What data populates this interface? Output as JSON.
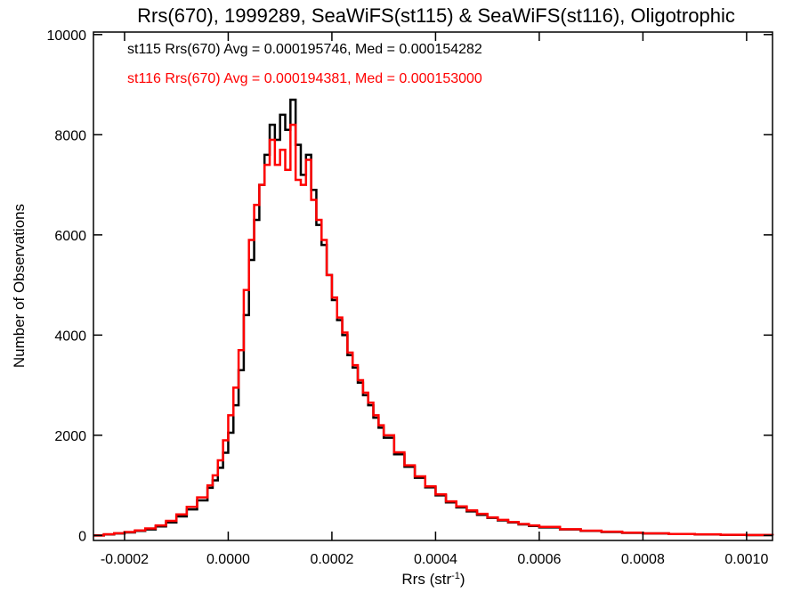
{
  "chart_data": {
    "type": "line",
    "title": "Rrs(670), 1999289, SeaWiFS(st115) & SeaWiFS(st116), Oligotrophic",
    "xlabel_main": "Rrs (str",
    "xlabel_sup": "-1",
    "xlabel_close": ")",
    "ylabel": "Number of Observations",
    "xlim": [
      -0.00026,
      0.00105
    ],
    "ylim": [
      -100,
      10050
    ],
    "xticks": [
      -0.0002,
      0.0,
      0.0002,
      0.0004,
      0.0006,
      0.0008,
      0.001
    ],
    "xtick_labels": [
      "-0.0002",
      "0.0000",
      "0.0002",
      "0.0004",
      "0.0006",
      "0.0008",
      "0.0010"
    ],
    "yticks": [
      0,
      2000,
      4000,
      6000,
      8000,
      10000
    ],
    "ytick_labels": [
      "0",
      "2000",
      "4000",
      "6000",
      "8000",
      "10000"
    ],
    "annotations": [
      "st115 Rrs(670) Avg = 0.000195746, Med = 0.000154282",
      "st116 Rrs(670) Avg = 0.000194381, Med = 0.000153000"
    ],
    "series": [
      {
        "name": "st115",
        "color": "#000000",
        "step": true,
        "x": [
          -0.00026,
          -0.00024,
          -0.00022,
          -0.0002,
          -0.00018,
          -0.00016,
          -0.00014,
          -0.00012,
          -0.0001,
          -8e-05,
          -6e-05,
          -4e-05,
          -3e-05,
          -2e-05,
          -1e-05,
          0.0,
          1e-05,
          2e-05,
          3e-05,
          4e-05,
          5e-05,
          6e-05,
          7e-05,
          8e-05,
          9e-05,
          0.0001,
          0.00011,
          0.00012,
          0.00013,
          0.00014,
          0.00015,
          0.00016,
          0.00017,
          0.00018,
          0.00019,
          0.0002,
          0.00021,
          0.00022,
          0.00023,
          0.00024,
          0.00025,
          0.00026,
          0.00027,
          0.00028,
          0.00029,
          0.0003,
          0.00032,
          0.00034,
          0.00036,
          0.00038,
          0.0004,
          0.00042,
          0.00044,
          0.00046,
          0.00048,
          0.0005,
          0.00052,
          0.00054,
          0.00056,
          0.00058,
          0.0006,
          0.00064,
          0.00068,
          0.00072,
          0.00076,
          0.0008,
          0.00085,
          0.0009,
          0.00095,
          0.001,
          0.00105
        ],
        "y": [
          0,
          20,
          40,
          60,
          90,
          120,
          180,
          260,
          380,
          520,
          700,
          950,
          1100,
          1350,
          1650,
          2050,
          2600,
          3300,
          4400,
          5500,
          6300,
          7000,
          7600,
          8200,
          7900,
          8400,
          8100,
          8700,
          7800,
          7200,
          7600,
          6900,
          6200,
          5800,
          5200,
          4700,
          4300,
          4000,
          3600,
          3350,
          3050,
          2800,
          2600,
          2350,
          2150,
          1950,
          1620,
          1370,
          1150,
          960,
          800,
          660,
          560,
          480,
          410,
          350,
          300,
          260,
          220,
          190,
          160,
          120,
          90,
          70,
          50,
          40,
          28,
          20,
          12,
          6,
          0
        ]
      },
      {
        "name": "st116",
        "color": "#ff0000",
        "step": true,
        "x": [
          -0.00026,
          -0.00024,
          -0.00022,
          -0.0002,
          -0.00018,
          -0.00016,
          -0.00014,
          -0.00012,
          -0.0001,
          -8e-05,
          -6e-05,
          -4e-05,
          -3e-05,
          -2e-05,
          -1e-05,
          0.0,
          1e-05,
          2e-05,
          3e-05,
          4e-05,
          5e-05,
          6e-05,
          7e-05,
          8e-05,
          9e-05,
          0.0001,
          0.00011,
          0.00012,
          0.00013,
          0.00014,
          0.00015,
          0.00016,
          0.00017,
          0.00018,
          0.00019,
          0.0002,
          0.00021,
          0.00022,
          0.00023,
          0.00024,
          0.00025,
          0.00026,
          0.00027,
          0.00028,
          0.00029,
          0.0003,
          0.00032,
          0.00034,
          0.00036,
          0.00038,
          0.0004,
          0.00042,
          0.00044,
          0.00046,
          0.00048,
          0.0005,
          0.00052,
          0.00054,
          0.00056,
          0.00058,
          0.0006,
          0.00064,
          0.00068,
          0.00072,
          0.00076,
          0.0008,
          0.00085,
          0.0009,
          0.00095,
          0.001,
          0.00105
        ],
        "y": [
          0,
          25,
          45,
          70,
          100,
          140,
          200,
          290,
          420,
          570,
          760,
          1000,
          1200,
          1500,
          1900,
          2400,
          2950,
          3700,
          4900,
          5900,
          6600,
          7000,
          7400,
          7900,
          7400,
          7700,
          7300,
          8200,
          7100,
          7000,
          7500,
          6700,
          6300,
          5900,
          5200,
          4750,
          4350,
          4050,
          3650,
          3400,
          3100,
          2850,
          2650,
          2400,
          2200,
          2000,
          1660,
          1400,
          1180,
          980,
          820,
          680,
          580,
          500,
          430,
          360,
          310,
          270,
          230,
          200,
          170,
          125,
          95,
          75,
          55,
          42,
          30,
          22,
          14,
          8,
          0
        ]
      }
    ]
  }
}
